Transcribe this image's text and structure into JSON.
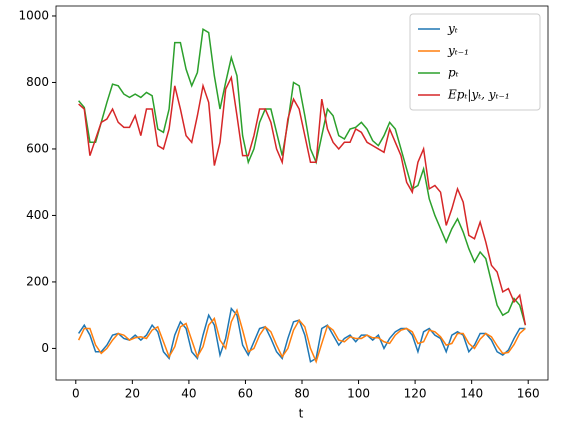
{
  "chart_data": {
    "type": "line",
    "xlabel": "t",
    "x": [
      1,
      3,
      5,
      7,
      9,
      11,
      13,
      15,
      17,
      19,
      21,
      23,
      25,
      27,
      29,
      31,
      33,
      35,
      37,
      39,
      41,
      43,
      45,
      47,
      49,
      51,
      53,
      55,
      57,
      59,
      61,
      63,
      65,
      67,
      69,
      71,
      73,
      75,
      77,
      79,
      81,
      83,
      85,
      87,
      89,
      91,
      93,
      95,
      97,
      99,
      101,
      103,
      105,
      107,
      109,
      111,
      113,
      115,
      117,
      119,
      121,
      123,
      125,
      127,
      129,
      131,
      133,
      135,
      137,
      139,
      141,
      143,
      145,
      147,
      149,
      151,
      153,
      155,
      157,
      159
    ],
    "series": [
      {
        "name": "yₜ",
        "color": "#1f77b4",
        "values": [
          45,
          70,
          40,
          -10,
          -10,
          10,
          40,
          45,
          30,
          25,
          40,
          25,
          40,
          70,
          50,
          -10,
          -30,
          40,
          80,
          60,
          -10,
          -30,
          40,
          100,
          70,
          -20,
          30,
          120,
          100,
          10,
          -20,
          20,
          60,
          65,
          30,
          -10,
          -30,
          30,
          80,
          85,
          40,
          -40,
          -30,
          60,
          70,
          40,
          10,
          30,
          40,
          20,
          40,
          40,
          25,
          40,
          0,
          30,
          50,
          60,
          60,
          40,
          -10,
          50,
          60,
          40,
          30,
          -10,
          40,
          50,
          40,
          -10,
          10,
          45,
          45,
          25,
          -10,
          -20,
          -5,
          30,
          60,
          60
        ]
      },
      {
        "name": "yₜ₋₁",
        "color": "#ff7f0e",
        "values": [
          25,
          60,
          60,
          10,
          -15,
          0,
          25,
          45,
          40,
          25,
          32,
          35,
          30,
          55,
          65,
          20,
          -25,
          5,
          65,
          75,
          25,
          -25,
          5,
          70,
          90,
          25,
          0,
          80,
          115,
          55,
          -10,
          0,
          40,
          65,
          50,
          10,
          -25,
          0,
          55,
          85,
          65,
          0,
          -40,
          15,
          68,
          55,
          25,
          20,
          35,
          30,
          30,
          40,
          32,
          32,
          20,
          15,
          40,
          55,
          60,
          50,
          15,
          20,
          55,
          50,
          35,
          10,
          15,
          45,
          45,
          15,
          0,
          28,
          45,
          35,
          8,
          -15,
          -12,
          12,
          45,
          60
        ]
      },
      {
        "name": "pₜ",
        "color": "#2ca02c",
        "values": [
          745,
          725,
          620,
          620,
          680,
          740,
          795,
          790,
          765,
          755,
          765,
          755,
          770,
          760,
          660,
          650,
          720,
          920,
          920,
          840,
          790,
          830,
          960,
          950,
          820,
          720,
          800,
          875,
          820,
          640,
          560,
          600,
          680,
          720,
          720,
          650,
          580,
          680,
          800,
          790,
          700,
          600,
          560,
          640,
          720,
          700,
          640,
          630,
          660,
          665,
          680,
          660,
          625,
          610,
          640,
          680,
          660,
          600,
          540,
          480,
          490,
          540,
          450,
          400,
          360,
          320,
          360,
          390,
          350,
          300,
          260,
          290,
          270,
          200,
          130,
          100,
          110,
          150,
          130,
          70
        ]
      },
      {
        "name": "Epₜ|yₜ, yₜ₋₁",
        "color": "#d62728",
        "values": [
          735,
          720,
          580,
          630,
          680,
          690,
          720,
          680,
          665,
          665,
          700,
          640,
          720,
          720,
          610,
          600,
          660,
          790,
          720,
          640,
          620,
          700,
          790,
          740,
          550,
          620,
          780,
          815,
          700,
          580,
          580,
          640,
          720,
          720,
          680,
          600,
          560,
          690,
          750,
          720,
          640,
          560,
          560,
          750,
          660,
          620,
          600,
          620,
          620,
          660,
          650,
          620,
          610,
          600,
          590,
          660,
          620,
          580,
          500,
          470,
          560,
          600,
          480,
          490,
          470,
          370,
          420,
          480,
          440,
          340,
          330,
          380,
          320,
          250,
          230,
          170,
          180,
          140,
          160,
          70
        ]
      }
    ],
    "xlim": [
      -7,
      167
    ],
    "xticks": [
      0,
      20,
      40,
      60,
      80,
      100,
      120,
      140,
      160
    ],
    "ylim": [
      -95,
      1030
    ],
    "yticks": [
      0,
      200,
      400,
      600,
      800,
      1000
    ],
    "legend": "upper right"
  }
}
